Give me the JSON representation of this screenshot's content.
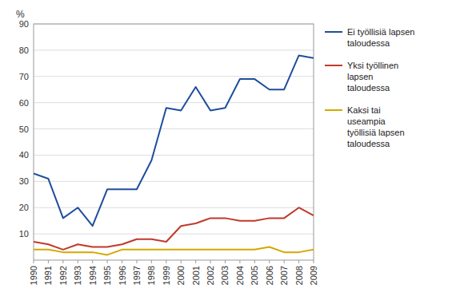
{
  "chart_data": {
    "type": "line",
    "y_label": "%",
    "x": [
      1990,
      1991,
      1992,
      1993,
      1994,
      1995,
      1996,
      1997,
      1998,
      1999,
      2000,
      2001,
      2002,
      2003,
      2004,
      2005,
      2006,
      2007,
      2008,
      2009
    ],
    "series": [
      {
        "name": "Ei työllisiä lapsen\ntaloudessa",
        "color": "#1f4e9b",
        "values": [
          33,
          31,
          16,
          20,
          13,
          27,
          27,
          27,
          38,
          58,
          57,
          66,
          57,
          58,
          69,
          69,
          65,
          65,
          78,
          77
        ]
      },
      {
        "name": "Yksi työllinen\nlapsen\ntaloudessa",
        "color": "#c0392b",
        "values": [
          7,
          6,
          4,
          6,
          5,
          5,
          6,
          8,
          8,
          7,
          13,
          14,
          16,
          16,
          15,
          15,
          16,
          16,
          20,
          17
        ]
      },
      {
        "name": "Kaksi tai\nuseampia\ntyöllisiä lapsen\ntaloudessa",
        "color": "#d4a800",
        "values": [
          4,
          4,
          3,
          3,
          3,
          2,
          4,
          4,
          4,
          4,
          4,
          4,
          4,
          4,
          4,
          4,
          5,
          3,
          3,
          4
        ]
      }
    ],
    "xlim": [
      1990,
      2009
    ],
    "xticks": [
      1990,
      1991,
      1992,
      1993,
      1994,
      1995,
      1996,
      1997,
      1998,
      1999,
      2000,
      2001,
      2002,
      2003,
      2004,
      2005,
      2006,
      2007,
      2008,
      2009
    ],
    "ylim": [
      0,
      90
    ],
    "yticks": [
      10,
      20,
      30,
      40,
      50,
      60,
      70,
      80,
      90
    ],
    "grid": true,
    "legend": "right"
  }
}
